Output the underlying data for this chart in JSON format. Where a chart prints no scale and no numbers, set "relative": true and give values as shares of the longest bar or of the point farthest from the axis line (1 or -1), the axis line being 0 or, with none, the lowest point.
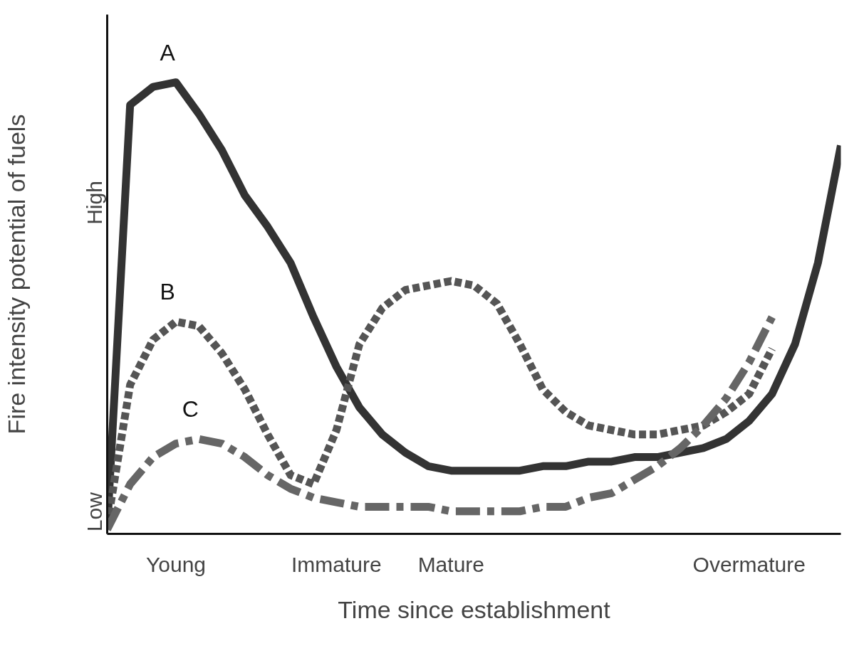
{
  "chart_data": {
    "type": "line",
    "relative": true,
    "xlabel": "Time since establishment",
    "ylabel": "Fire intensity potential of fuels",
    "annotations": [
      "Low",
      "High"
    ],
    "categories": [
      null,
      null,
      null,
      "Young",
      null,
      null,
      null,
      null,
      null,
      null,
      "Immature",
      null,
      null,
      null,
      null,
      "Mature",
      null,
      null,
      null,
      null,
      null,
      null,
      null,
      null,
      null,
      null,
      null,
      null,
      "Overmature",
      null,
      null,
      null,
      null
    ],
    "series": [
      {
        "name": "A",
        "color": "#333333",
        "line_style": "solid",
        "values": [
          0.01,
          0.95,
          0.99,
          1.0,
          0.93,
          0.85,
          0.75,
          0.68,
          0.6,
          0.48,
          0.37,
          0.28,
          0.22,
          0.18,
          0.15,
          0.14,
          0.14,
          0.14,
          0.14,
          0.15,
          0.15,
          0.16,
          0.16,
          0.17,
          0.17,
          0.18,
          0.19,
          0.21,
          0.25,
          0.31,
          0.42,
          0.6,
          0.86
        ]
      },
      {
        "name": "B",
        "color": "#555555",
        "line_style": "dashed",
        "values": [
          0.02,
          0.33,
          0.43,
          0.47,
          0.46,
          0.4,
          0.32,
          0.22,
          0.13,
          0.11,
          0.23,
          0.42,
          0.5,
          0.54,
          0.55,
          0.56,
          0.55,
          0.51,
          0.42,
          0.32,
          0.27,
          0.24,
          0.23,
          0.22,
          0.22,
          0.23,
          0.24,
          0.27,
          0.31,
          0.41,
          null,
          null,
          null
        ]
      },
      {
        "name": "C",
        "color": "#666666",
        "line_style": "dashdot",
        "values": [
          0.01,
          0.11,
          0.17,
          0.2,
          0.21,
          0.2,
          0.17,
          0.13,
          0.1,
          0.08,
          0.07,
          0.06,
          0.06,
          0.06,
          0.06,
          0.05,
          0.05,
          0.05,
          0.05,
          0.06,
          0.06,
          0.08,
          0.09,
          0.12,
          0.15,
          0.19,
          0.24,
          0.3,
          0.38,
          0.48,
          null,
          null,
          null
        ]
      }
    ]
  }
}
